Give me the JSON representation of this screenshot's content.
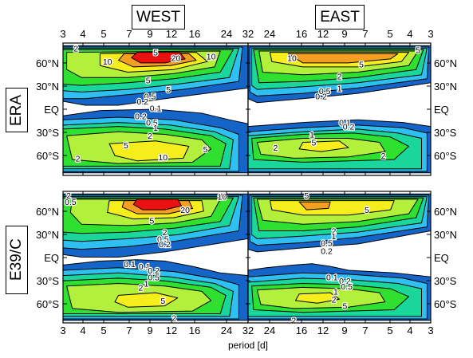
{
  "chart_data": {
    "type": "contour",
    "column_titles": [
      "WEST",
      "EAST"
    ],
    "row_titles": [
      "ERA",
      "E39/C"
    ],
    "xlabel": "period [d]",
    "x_ticks_west": [
      "3",
      "4",
      "5",
      "7",
      "9",
      "12",
      "16",
      "24",
      "32"
    ],
    "x_ticks_east": [
      "32",
      "24",
      "16",
      "12",
      "9",
      "7",
      "5",
      "4",
      "3"
    ],
    "y_ticks": [
      "60°N",
      "30°N",
      "EQ",
      "30°S",
      "60°S"
    ],
    "contour_levels": [
      0.1,
      0.2,
      0.5,
      1,
      2,
      5,
      10,
      20
    ],
    "level_colors": [
      "#1565c8",
      "#2ec0f0",
      "#19d69b",
      "#30e030",
      "#b2f03c",
      "#f6ee1c",
      "#f49f21",
      "#ec1111"
    ],
    "panels": [
      {
        "row": "ERA",
        "column": "WEST",
        "labels": [
          "2",
          "10",
          "5",
          "20",
          "10",
          "5",
          "5",
          "0.5",
          "0.2",
          "0.1",
          "0.2",
          "0.5",
          "1",
          "2",
          "5",
          "10",
          "5",
          "2"
        ]
      },
      {
        "row": "ERA",
        "column": "EAST",
        "labels": [
          "10",
          "5",
          "5",
          "2",
          "1",
          "0.5",
          "0.2",
          "0.1",
          "0.2",
          "1",
          "2",
          "5",
          "2"
        ]
      },
      {
        "row": "E39/C",
        "column": "WEST",
        "labels": [
          "2",
          "0.5",
          "10",
          "20",
          "5",
          "2",
          "0.5",
          "0.2",
          "0.1",
          "0.1",
          "0.2",
          "0.5",
          "1",
          "2",
          "5",
          "2"
        ]
      },
      {
        "row": "E39/C",
        "column": "EAST",
        "labels": [
          "5",
          "5",
          "2",
          "1",
          "0.5",
          "0.2",
          "0.1",
          "0.2",
          "0.5",
          "1",
          "2",
          "5",
          "2"
        ]
      }
    ]
  }
}
